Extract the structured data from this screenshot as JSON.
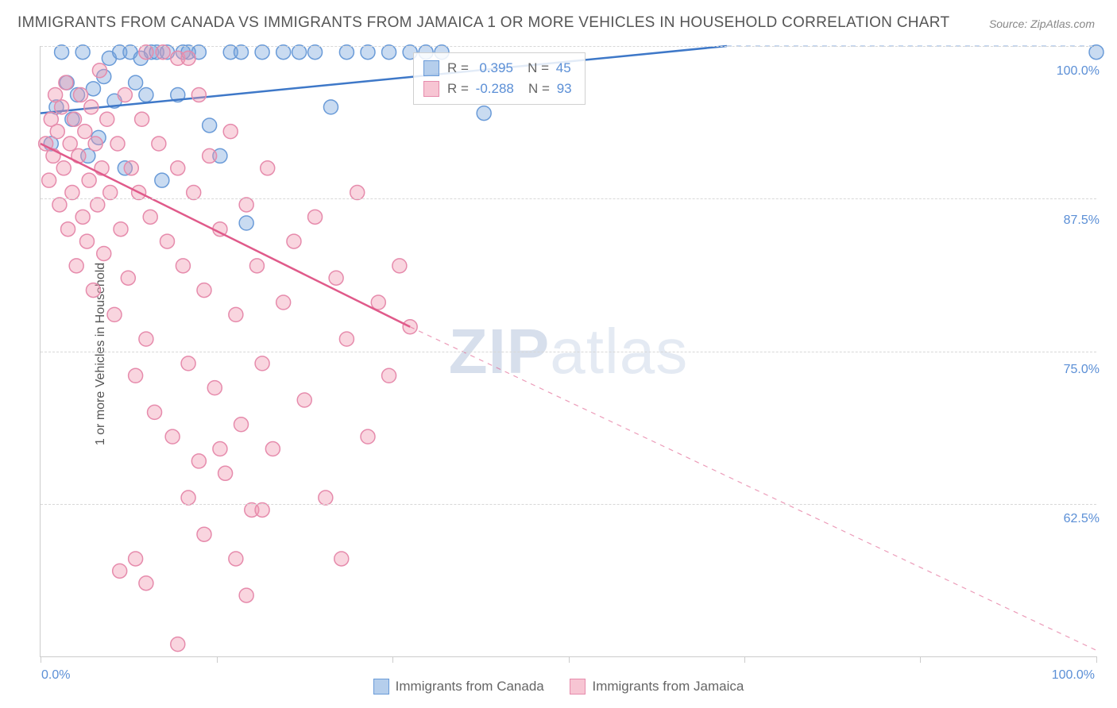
{
  "title": "IMMIGRANTS FROM CANADA VS IMMIGRANTS FROM JAMAICA 1 OR MORE VEHICLES IN HOUSEHOLD CORRELATION CHART",
  "source": "Source: ZipAtlas.com",
  "y_axis_label": "1 or more Vehicles in Household",
  "watermark": {
    "zip": "ZIP",
    "rest": "atlas"
  },
  "chart": {
    "type": "scatter",
    "xlim": [
      0,
      100
    ],
    "ylim": [
      50,
      100
    ],
    "x_ticks": [
      0,
      16.67,
      33.33,
      50,
      66.67,
      83.33,
      100
    ],
    "x_tick_labels": {
      "0": "0.0%",
      "100": "100.0%"
    },
    "y_gridlines": [
      62.5,
      75.0,
      87.5,
      100.0
    ],
    "y_tick_labels": [
      "62.5%",
      "75.0%",
      "87.5%",
      "100.0%"
    ],
    "background_color": "#ffffff",
    "grid_color": "#d8d8d8",
    "axis_color": "#cccccc",
    "marker_radius": 9,
    "marker_stroke_width": 1.5,
    "trend_line_width": 2.5,
    "series": [
      {
        "name": "Immigrants from Canada",
        "color_fill": "rgba(120,165,220,0.40)",
        "color_stroke": "#6a9bd8",
        "r_value": "0.395",
        "n_value": "45",
        "trend": {
          "x1": 0,
          "y1": 94.5,
          "x2": 65,
          "y2": 100,
          "dash_after_x": 65,
          "color": "#3e78c8"
        },
        "points": [
          [
            1,
            92
          ],
          [
            1.5,
            95
          ],
          [
            2,
            99.5
          ],
          [
            2.5,
            97
          ],
          [
            3,
            94
          ],
          [
            3.5,
            96
          ],
          [
            4,
            99.5
          ],
          [
            4.5,
            91
          ],
          [
            5,
            96.5
          ],
          [
            5.5,
            92.5
          ],
          [
            6,
            97.5
          ],
          [
            6.5,
            99
          ],
          [
            7,
            95.5
          ],
          [
            7.5,
            99.5
          ],
          [
            8,
            90
          ],
          [
            8.5,
            99.5
          ],
          [
            9,
            97
          ],
          [
            9.5,
            99
          ],
          [
            10,
            96
          ],
          [
            10.5,
            99.5
          ],
          [
            11,
            99.5
          ],
          [
            11.5,
            89
          ],
          [
            12,
            99.5
          ],
          [
            13,
            96
          ],
          [
            13.5,
            99.5
          ],
          [
            14,
            99.5
          ],
          [
            15,
            99.5
          ],
          [
            16,
            93.5
          ],
          [
            17,
            91
          ],
          [
            18,
            99.5
          ],
          [
            19,
            99.5
          ],
          [
            19.5,
            85.5
          ],
          [
            21,
            99.5
          ],
          [
            23,
            99.5
          ],
          [
            24.5,
            99.5
          ],
          [
            26,
            99.5
          ],
          [
            27.5,
            95
          ],
          [
            29,
            99.5
          ],
          [
            31,
            99.5
          ],
          [
            33,
            99.5
          ],
          [
            35,
            99.5
          ],
          [
            36.5,
            99.5
          ],
          [
            38,
            99.5
          ],
          [
            42,
            94.5
          ],
          [
            100,
            99.5
          ]
        ]
      },
      {
        "name": "Immigrants from Jamaica",
        "color_fill": "rgba(240,150,175,0.40)",
        "color_stroke": "#e68bac",
        "r_value": "-0.288",
        "n_value": "93",
        "trend": {
          "x1": 0,
          "y1": 92,
          "x2": 35,
          "y2": 77,
          "dash_after_x": 35,
          "extrap_x2": 100,
          "extrap_y2": 50.5,
          "color": "#e05a8a"
        },
        "points": [
          [
            0.5,
            92
          ],
          [
            0.8,
            89
          ],
          [
            1,
            94
          ],
          [
            1.2,
            91
          ],
          [
            1.4,
            96
          ],
          [
            1.6,
            93
          ],
          [
            1.8,
            87
          ],
          [
            2,
            95
          ],
          [
            2.2,
            90
          ],
          [
            2.4,
            97
          ],
          [
            2.6,
            85
          ],
          [
            2.8,
            92
          ],
          [
            3,
            88
          ],
          [
            3.2,
            94
          ],
          [
            3.4,
            82
          ],
          [
            3.6,
            91
          ],
          [
            3.8,
            96
          ],
          [
            4,
            86
          ],
          [
            4.2,
            93
          ],
          [
            4.4,
            84
          ],
          [
            4.6,
            89
          ],
          [
            4.8,
            95
          ],
          [
            5,
            80
          ],
          [
            5.2,
            92
          ],
          [
            5.4,
            87
          ],
          [
            5.6,
            98
          ],
          [
            5.8,
            90
          ],
          [
            6,
            83
          ],
          [
            6.3,
            94
          ],
          [
            6.6,
            88
          ],
          [
            7,
            78
          ],
          [
            7.3,
            92
          ],
          [
            7.6,
            85
          ],
          [
            8,
            96
          ],
          [
            8.3,
            81
          ],
          [
            8.6,
            90
          ],
          [
            9,
            73
          ],
          [
            9.3,
            88
          ],
          [
            9.6,
            94
          ],
          [
            10,
            76
          ],
          [
            10,
            99.5
          ],
          [
            10.4,
            86
          ],
          [
            10.8,
            70
          ],
          [
            11.2,
            92
          ],
          [
            11.6,
            99.5
          ],
          [
            12,
            84
          ],
          [
            12.5,
            68
          ],
          [
            13,
            90
          ],
          [
            13,
            99
          ],
          [
            13.5,
            82
          ],
          [
            14,
            99
          ],
          [
            14,
            74
          ],
          [
            14.5,
            88
          ],
          [
            15,
            66
          ],
          [
            15,
            96
          ],
          [
            15.5,
            80
          ],
          [
            16,
            91
          ],
          [
            16.5,
            72
          ],
          [
            17,
            85
          ],
          [
            17.5,
            65
          ],
          [
            18,
            93
          ],
          [
            18.5,
            78
          ],
          [
            19,
            69
          ],
          [
            19.5,
            87
          ],
          [
            20,
            62
          ],
          [
            20.5,
            82
          ],
          [
            21,
            74
          ],
          [
            21.5,
            90
          ],
          [
            22,
            67
          ],
          [
            23,
            79
          ],
          [
            24,
            84
          ],
          [
            25,
            71
          ],
          [
            26,
            86
          ],
          [
            27,
            63
          ],
          [
            28,
            81
          ],
          [
            28.5,
            58
          ],
          [
            29,
            76
          ],
          [
            30,
            88
          ],
          [
            31,
            68
          ],
          [
            32,
            79
          ],
          [
            33,
            73
          ],
          [
            34,
            82
          ],
          [
            35,
            77
          ],
          [
            9,
            58
          ],
          [
            10,
            56
          ],
          [
            13,
            51
          ],
          [
            14,
            63
          ],
          [
            15.5,
            60
          ],
          [
            17,
            67
          ],
          [
            18.5,
            58
          ],
          [
            19.5,
            55
          ],
          [
            21,
            62
          ],
          [
            7.5,
            57
          ]
        ]
      }
    ],
    "legend_bottom": [
      {
        "label": "Immigrants from Canada",
        "swatch": "blue"
      },
      {
        "label": "Immigrants from Jamaica",
        "swatch": "pink"
      }
    ]
  }
}
